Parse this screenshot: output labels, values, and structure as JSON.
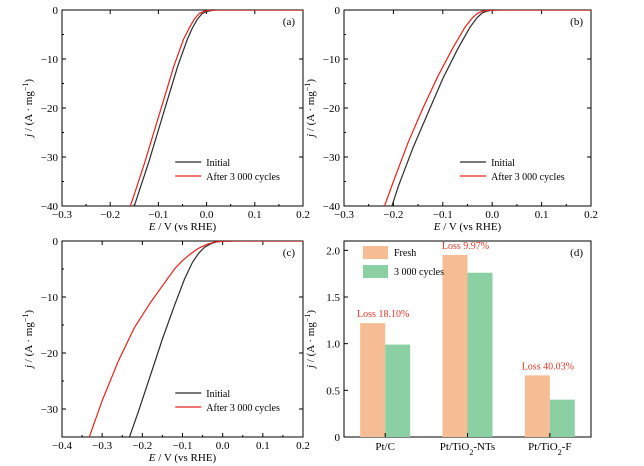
{
  "chart_data": [
    {
      "panel": "(a)",
      "type": "line",
      "xlabel": "E / V (vs RHE)",
      "ylabel": "j / (A·mg⁻¹)",
      "xlim": [
        -0.3,
        0.2
      ],
      "ylim": [
        -40,
        0
      ],
      "xticks": [
        -0.3,
        -0.2,
        -0.1,
        0.0,
        0.1,
        0.2
      ],
      "xtick_labels": [
        "−0.3",
        "−0.2",
        "−0.1",
        "0.0",
        "0.1",
        "0.2"
      ],
      "yticks": [
        0,
        -10,
        -20,
        -30,
        -40
      ],
      "ytick_labels": [
        "0",
        "−10",
        "−20",
        "−30",
        "−40"
      ],
      "legend": "lower-right",
      "series": [
        {
          "name": "Initial",
          "color": "#2b2b2b",
          "x": [
            -0.15,
            -0.14,
            -0.12,
            -0.1,
            -0.08,
            -0.06,
            -0.04,
            -0.03,
            -0.02,
            -0.01,
            0.0,
            0.01,
            0.02,
            0.05,
            0.1,
            0.15,
            0.2
          ],
          "y": [
            -40,
            -37,
            -31,
            -24.5,
            -18,
            -11.5,
            -6,
            -3.8,
            -2,
            -0.8,
            -0.3,
            -0.1,
            0,
            0,
            0,
            0,
            0
          ]
        },
        {
          "name": "After 3 000 cycles",
          "color": "#e8221d",
          "x": [
            -0.158,
            -0.148,
            -0.128,
            -0.108,
            -0.088,
            -0.068,
            -0.048,
            -0.035,
            -0.025,
            -0.015,
            -0.005,
            0.005,
            0.02,
            0.05,
            0.1,
            0.15,
            0.2
          ],
          "y": [
            -40,
            -37,
            -31,
            -24.5,
            -18,
            -11.5,
            -6,
            -3.5,
            -1.8,
            -0.7,
            -0.25,
            -0.08,
            0,
            0,
            0,
            0,
            0
          ]
        }
      ]
    },
    {
      "panel": "(b)",
      "type": "line",
      "xlabel": "E / V (vs RHE)",
      "ylabel": "j / (A·mg⁻¹)",
      "xlim": [
        -0.3,
        0.2
      ],
      "ylim": [
        -40,
        0
      ],
      "xticks": [
        -0.3,
        -0.2,
        -0.1,
        0.0,
        0.1,
        0.2
      ],
      "xtick_labels": [
        "−0.3",
        "−0.2",
        "−0.1",
        "0.0",
        "0.1",
        "0.2"
      ],
      "yticks": [
        0,
        -10,
        -20,
        -30,
        -40
      ],
      "ytick_labels": [
        "0",
        "−10",
        "−20",
        "−30",
        "−40"
      ],
      "legend": "lower-right",
      "series": [
        {
          "name": "Initial",
          "color": "#2b2b2b",
          "x": [
            -0.203,
            -0.19,
            -0.16,
            -0.13,
            -0.1,
            -0.07,
            -0.045,
            -0.03,
            -0.02,
            -0.01,
            0.0,
            0.02,
            0.05,
            0.1,
            0.15,
            0.2
          ],
          "y": [
            -40,
            -36,
            -28,
            -21,
            -14,
            -8,
            -3.5,
            -1.5,
            -0.6,
            -0.2,
            -0.05,
            0,
            0,
            0,
            0,
            0
          ]
        },
        {
          "name": "After 3 000 cycles",
          "color": "#e8221d",
          "x": [
            -0.218,
            -0.2,
            -0.17,
            -0.14,
            -0.11,
            -0.08,
            -0.055,
            -0.04,
            -0.03,
            -0.02,
            -0.01,
            0.01,
            0.05,
            0.1,
            0.15,
            0.2
          ],
          "y": [
            -40,
            -35,
            -27,
            -20,
            -13.5,
            -7.8,
            -3.5,
            -1.6,
            -0.7,
            -0.25,
            -0.08,
            0,
            0,
            0,
            0,
            0
          ]
        }
      ]
    },
    {
      "panel": "(c)",
      "type": "line",
      "xlabel": "E / V (vs RHE)",
      "ylabel": "j / (A·mg⁻¹)",
      "xlim": [
        -0.4,
        0.2
      ],
      "ylim": [
        -35,
        0
      ],
      "xticks": [
        -0.4,
        -0.3,
        -0.2,
        -0.1,
        0.0,
        0.1,
        0.2
      ],
      "xtick_labels": [
        "−0.4",
        "−0.3",
        "−0.2",
        "−0.1",
        "0.0",
        "0.1",
        "0.2"
      ],
      "yticks": [
        0,
        -10,
        -20,
        -30
      ],
      "ytick_labels": [
        "0",
        "−10",
        "−20",
        "−30"
      ],
      "legend": "lower-right",
      "series": [
        {
          "name": "Initial",
          "color": "#2b2b2b",
          "x": [
            -0.232,
            -0.21,
            -0.18,
            -0.15,
            -0.12,
            -0.095,
            -0.075,
            -0.06,
            -0.045,
            -0.03,
            -0.015,
            0.0,
            0.03,
            0.1,
            0.2
          ],
          "y": [
            -35,
            -30.5,
            -24,
            -17.5,
            -11.5,
            -6.8,
            -3.8,
            -2.2,
            -1.1,
            -0.5,
            -0.15,
            -0.05,
            0,
            0,
            0
          ]
        },
        {
          "name": "After 3 000 cycles",
          "color": "#e8221d",
          "x": [
            -0.332,
            -0.3,
            -0.26,
            -0.22,
            -0.18,
            -0.15,
            -0.12,
            -0.1,
            -0.08,
            -0.06,
            -0.04,
            -0.02,
            0.0,
            0.03,
            0.1,
            0.2
          ],
          "y": [
            -35,
            -28.5,
            -21.5,
            -15.5,
            -11,
            -8,
            -5,
            -3.5,
            -2.3,
            -1.3,
            -0.6,
            -0.2,
            -0.05,
            0,
            0,
            0
          ]
        }
      ]
    },
    {
      "panel": "(d)",
      "type": "bar",
      "ylabel": "j / (A·mg⁻¹)",
      "ylim": [
        0,
        2.1
      ],
      "yticks": [
        0,
        0.5,
        1.0,
        1.5,
        2.0
      ],
      "ytick_labels": [
        "0",
        "0.5",
        "1.0",
        "1.5",
        "2.0"
      ],
      "categories": [
        "Pt/C",
        "Pt/TiO2-NTs",
        "Pt/TiO2-F"
      ],
      "legend": "top-left",
      "series": [
        {
          "name": "Fresh",
          "color": "#f6bd94",
          "values": [
            1.22,
            1.95,
            0.66
          ]
        },
        {
          "name": "3 000 cycles",
          "color": "#8ad0a2",
          "values": [
            0.99,
            1.76,
            0.4
          ]
        }
      ],
      "annotations": [
        "Loss 18.10%",
        "Loss 9.97%",
        "Loss 40.03%"
      ]
    }
  ]
}
